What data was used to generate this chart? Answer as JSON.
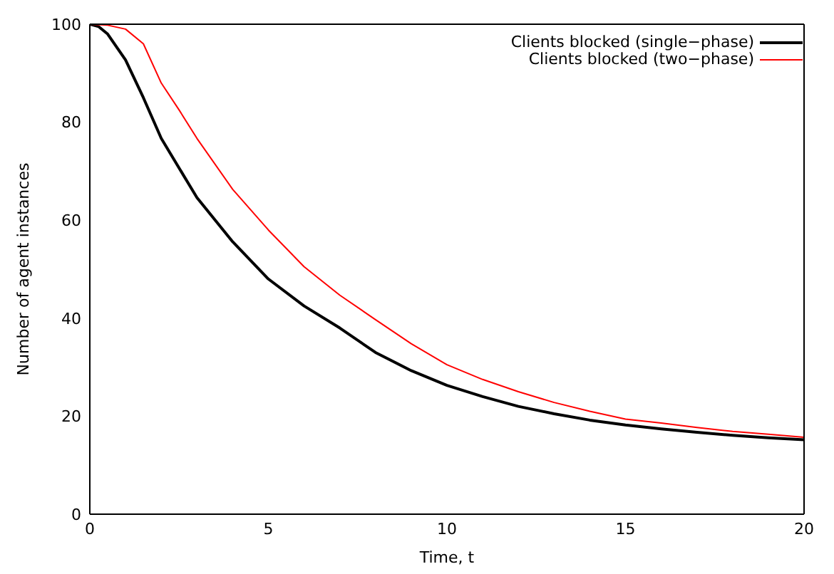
{
  "chart_data": {
    "type": "line",
    "xlabel": "Time, t",
    "ylabel": "Number of agent instances",
    "xlim": [
      0,
      20
    ],
    "xticks": [
      0,
      5,
      10,
      15,
      20
    ],
    "ylim": [
      0,
      100
    ],
    "yticks": [
      0,
      20,
      40,
      60,
      80,
      100
    ],
    "grid": false,
    "legend": "top right",
    "marker": "none",
    "line_style": "solid",
    "series": [
      {
        "name": "Clients blocked (single−phase)",
        "color": "#000000",
        "x": [
          0,
          0.25,
          0.5,
          1,
          1.5,
          2,
          3,
          4,
          5,
          6,
          7,
          8,
          9,
          10,
          11,
          12,
          13,
          14,
          15,
          16,
          17,
          18,
          19,
          20
        ],
        "values": [
          100,
          99.5,
          98,
          92.7,
          85,
          76.7,
          64.6,
          55.6,
          48,
          42.5,
          38,
          33,
          29.3,
          26.3,
          24,
          22,
          20.5,
          19.2,
          18.2,
          17.4,
          16.7,
          16.1,
          15.6,
          15.2
        ]
      },
      {
        "name": "Clients blocked (two−phase)",
        "color": "#ff0000",
        "x": [
          0,
          0.5,
          1,
          1.5,
          2,
          2.5,
          3,
          4,
          5,
          6,
          7,
          8,
          9,
          10,
          11,
          12,
          13,
          14,
          15,
          16,
          17,
          18,
          19,
          20
        ],
        "values": [
          100,
          99.8,
          99,
          96,
          88,
          82.5,
          76.7,
          66.3,
          58,
          50.5,
          44.7,
          39.7,
          34.8,
          30.5,
          27.5,
          25,
          22.8,
          21,
          19.4,
          18.6,
          17.7,
          16.9,
          16.3,
          15.7
        ]
      }
    ]
  }
}
